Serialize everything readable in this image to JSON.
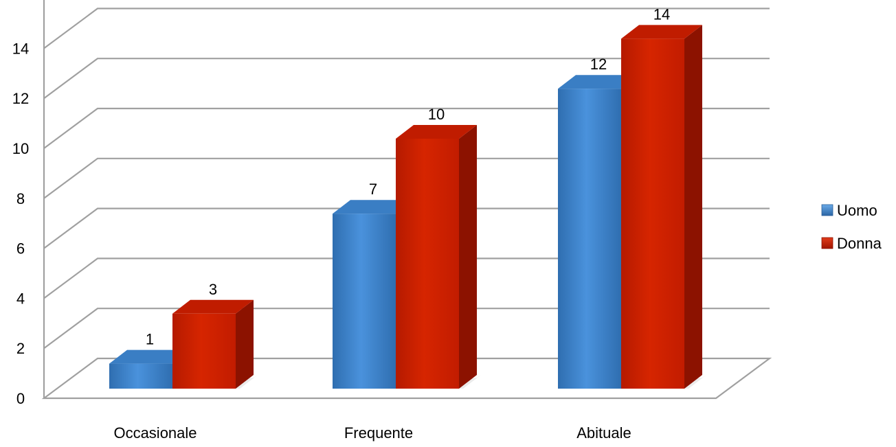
{
  "chart_data": {
    "type": "bar",
    "categories": [
      "Occasionale",
      "Frequente",
      "Abituale"
    ],
    "series": [
      {
        "name": "Uomo",
        "values": [
          1,
          7,
          12
        ],
        "color": "#3f86d0"
      },
      {
        "name": "Donna",
        "values": [
          3,
          10,
          14
        ],
        "color": "#cc1f00"
      }
    ],
    "y_ticks": [
      "0",
      "2",
      "4",
      "6",
      "8",
      "10",
      "12",
      "14"
    ],
    "ylim": [
      0,
      14
    ],
    "data_labels": true,
    "grid": true,
    "three_d": true,
    "legend_position": "right"
  }
}
